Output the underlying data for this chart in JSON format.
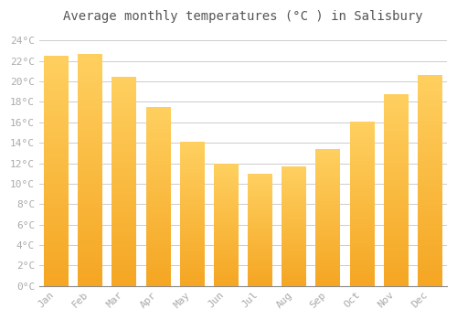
{
  "title": "Average monthly temperatures (°C ) in Salisbury",
  "months": [
    "Jan",
    "Feb",
    "Mar",
    "Apr",
    "May",
    "Jun",
    "Jul",
    "Aug",
    "Sep",
    "Oct",
    "Nov",
    "Dec"
  ],
  "values": [
    22.5,
    22.7,
    20.4,
    17.5,
    14.1,
    11.9,
    11.0,
    11.7,
    13.4,
    16.1,
    18.7,
    20.6
  ],
  "bar_color_top": "#F5A623",
  "bar_color_bottom": "#FFD060",
  "background_color": "#FFFFFF",
  "grid_color": "#CCCCCC",
  "title_fontsize": 10,
  "tick_label_color": "#AAAAAA",
  "ylim": [
    0,
    25
  ],
  "ytick_step": 2,
  "bar_width": 0.72
}
